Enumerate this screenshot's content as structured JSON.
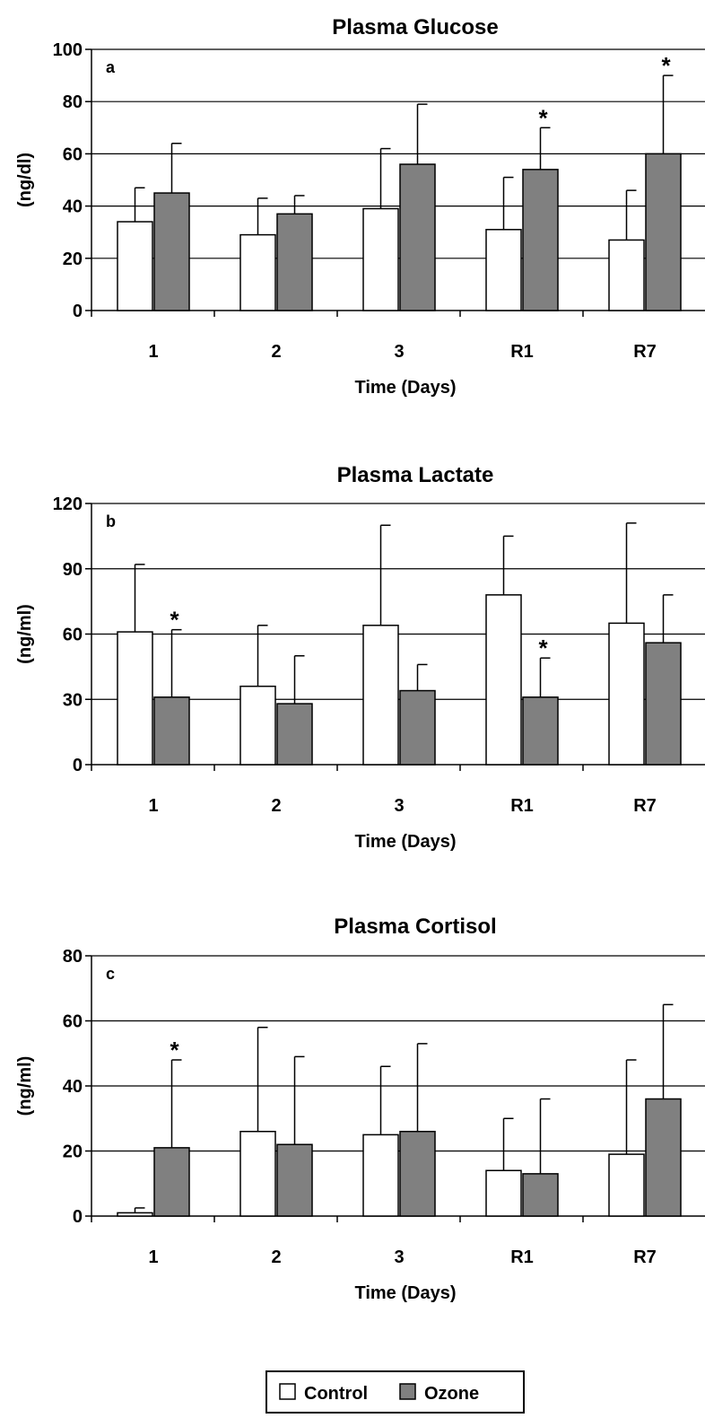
{
  "chart_data": [
    {
      "type": "bar",
      "title": "Plasma Glucose",
      "panel_letter": "a",
      "xlabel": "Time (Days)",
      "ylabel": "(ng/dl)",
      "ylim": [
        0,
        100
      ],
      "yticks": [
        0,
        20,
        40,
        60,
        80,
        100
      ],
      "categories": [
        "1",
        "2",
        "3",
        "R1",
        "R7"
      ],
      "grid": true,
      "series": [
        {
          "name": "Control",
          "values": [
            34,
            29,
            39,
            31,
            27
          ],
          "errors": [
            13,
            14,
            23,
            20,
            19
          ],
          "color": "#ffffff"
        },
        {
          "name": "Ozone",
          "values": [
            45,
            37,
            56,
            54,
            60
          ],
          "errors": [
            19,
            7,
            23,
            16,
            30
          ],
          "color": "#808080"
        }
      ],
      "annotations": [
        {
          "text": "*",
          "category": "R1",
          "series": "Ozone"
        },
        {
          "text": "*",
          "category": "R7",
          "series": "Ozone"
        }
      ]
    },
    {
      "type": "bar",
      "title": "Plasma Lactate",
      "panel_letter": "b",
      "xlabel": "Time (Days)",
      "ylabel": "(ng/ml)",
      "ylim": [
        0,
        120
      ],
      "yticks": [
        0,
        30,
        60,
        90,
        120
      ],
      "categories": [
        "1",
        "2",
        "3",
        "R1",
        "R7"
      ],
      "grid": true,
      "series": [
        {
          "name": "Control",
          "values": [
            61,
            36,
            64,
            78,
            65
          ],
          "errors": [
            31,
            28,
            46,
            27,
            46
          ],
          "color": "#ffffff"
        },
        {
          "name": "Ozone",
          "values": [
            31,
            28,
            34,
            31,
            56
          ],
          "errors": [
            31,
            22,
            12,
            18,
            22
          ],
          "color": "#808080"
        }
      ],
      "annotations": [
        {
          "text": "*",
          "category": "1",
          "series": "Ozone"
        },
        {
          "text": "*",
          "category": "R1",
          "series": "Ozone"
        }
      ]
    },
    {
      "type": "bar",
      "title": "Plasma Cortisol",
      "panel_letter": "c",
      "xlabel": "Time (Days)",
      "ylabel": "(ng/ml)",
      "ylim": [
        0,
        80
      ],
      "yticks": [
        0,
        20,
        40,
        60,
        80
      ],
      "categories": [
        "1",
        "2",
        "3",
        "R1",
        "R7"
      ],
      "grid": true,
      "series": [
        {
          "name": "Control",
          "values": [
            1,
            26,
            25,
            14,
            19
          ],
          "errors": [
            1.5,
            32,
            21,
            16,
            29
          ],
          "color": "#ffffff"
        },
        {
          "name": "Ozone",
          "values": [
            21,
            22,
            26,
            13,
            36
          ],
          "errors": [
            27,
            27,
            27,
            23,
            29
          ],
          "color": "#808080"
        }
      ],
      "annotations": [
        {
          "text": "*",
          "category": "1",
          "series": "Ozone"
        }
      ]
    }
  ],
  "legend": {
    "placement": "bottom-center",
    "items": [
      {
        "label": "Control",
        "color": "#ffffff"
      },
      {
        "label": "Ozone",
        "color": "#808080"
      }
    ]
  }
}
